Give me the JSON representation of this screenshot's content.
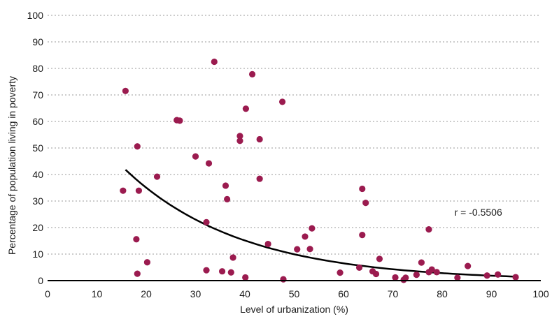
{
  "chart_data": {
    "type": "scatter",
    "xlabel": "Level of urbanization (%)",
    "ylabel": "Percentage of population living in poverty",
    "xlim": [
      0,
      100
    ],
    "ylim": [
      0,
      100
    ],
    "x_ticks": [
      0,
      10,
      20,
      30,
      40,
      50,
      60,
      70,
      80,
      90,
      100
    ],
    "y_ticks": [
      0,
      10,
      20,
      30,
      40,
      50,
      60,
      70,
      80,
      90,
      100
    ],
    "grid": "horizontal dashed",
    "point_color": "#9b1b4f",
    "annotation": "r = -0.5506",
    "points": [
      [
        15.8,
        71.5
      ],
      [
        33.8,
        82.5
      ],
      [
        41.5,
        77.8
      ],
      [
        26.2,
        60.5
      ],
      [
        26.8,
        60.3
      ],
      [
        47.6,
        67.4
      ],
      [
        40.2,
        64.8
      ],
      [
        39.0,
        54.5
      ],
      [
        39.0,
        52.7
      ],
      [
        43.0,
        53.3
      ],
      [
        18.2,
        50.6
      ],
      [
        30.0,
        46.8
      ],
      [
        32.7,
        44.2
      ],
      [
        22.2,
        39.2
      ],
      [
        43.0,
        38.4
      ],
      [
        15.3,
        33.9
      ],
      [
        18.5,
        33.9
      ],
      [
        36.1,
        35.8
      ],
      [
        36.4,
        30.7
      ],
      [
        63.8,
        34.6
      ],
      [
        64.5,
        29.3
      ],
      [
        32.2,
        22.0
      ],
      [
        53.6,
        19.7
      ],
      [
        77.3,
        19.3
      ],
      [
        63.8,
        17.2
      ],
      [
        52.2,
        16.6
      ],
      [
        18.0,
        15.6
      ],
      [
        44.7,
        13.8
      ],
      [
        50.6,
        11.8
      ],
      [
        53.2,
        11.9
      ],
      [
        37.6,
        8.7
      ],
      [
        67.3,
        8.2
      ],
      [
        20.2,
        6.9
      ],
      [
        75.8,
        6.8
      ],
      [
        85.2,
        5.5
      ],
      [
        63.2,
        4.9
      ],
      [
        32.2,
        3.9
      ],
      [
        35.4,
        3.5
      ],
      [
        37.2,
        3.1
      ],
      [
        59.3,
        3.0
      ],
      [
        65.9,
        3.5
      ],
      [
        66.6,
        2.5
      ],
      [
        18.2,
        2.6
      ],
      [
        74.8,
        2.2
      ],
      [
        77.3,
        3.2
      ],
      [
        77.9,
        4.2
      ],
      [
        78.9,
        3.2
      ],
      [
        89.1,
        1.9
      ],
      [
        91.3,
        2.3
      ],
      [
        94.9,
        1.3
      ],
      [
        40.1,
        1.2
      ],
      [
        47.8,
        0.5
      ],
      [
        70.5,
        1.2
      ],
      [
        72.2,
        0.3
      ],
      [
        72.6,
        1.1
      ],
      [
        83.1,
        1.1
      ]
    ],
    "trend": {
      "type": "exponential",
      "x_start": 15.8,
      "x_end": 95.0,
      "y_start": 41.8,
      "y_end": 1.5
    }
  }
}
